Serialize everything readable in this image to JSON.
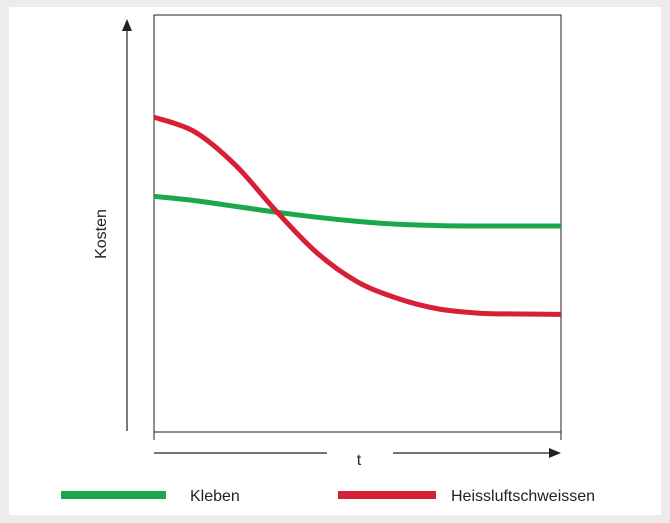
{
  "chart_data": {
    "type": "line",
    "title": "",
    "xlabel": "t",
    "ylabel": "Kosten",
    "xlim": [
      0,
      1
    ],
    "ylim": [
      0,
      1
    ],
    "grid": false,
    "legend_position": "bottom",
    "series": [
      {
        "name": "Kleben",
        "color": "#1aa84a",
        "x": [
          0,
          0.1,
          0.2,
          0.3,
          0.4,
          0.5,
          0.6,
          0.7,
          0.8,
          0.9,
          1.0
        ],
        "values": [
          0.565,
          0.555,
          0.541,
          0.527,
          0.515,
          0.505,
          0.498,
          0.495,
          0.494,
          0.494,
          0.494
        ]
      },
      {
        "name": "Heissluftschweissen",
        "color": "#d71f35",
        "x": [
          0,
          0.1,
          0.2,
          0.3,
          0.4,
          0.5,
          0.6,
          0.7,
          0.8,
          0.9,
          1.0
        ],
        "values": [
          0.755,
          0.72,
          0.64,
          0.53,
          0.43,
          0.36,
          0.32,
          0.295,
          0.285,
          0.283,
          0.282
        ]
      }
    ]
  }
}
